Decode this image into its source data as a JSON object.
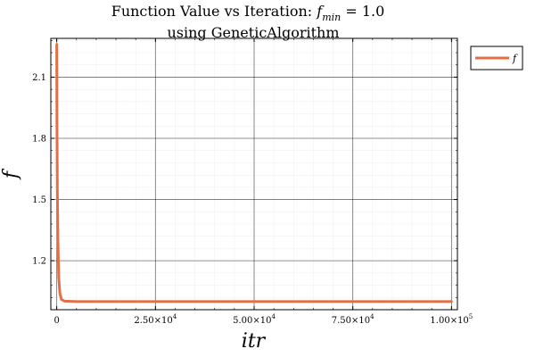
{
  "chart_data": {
    "type": "line",
    "title": {
      "line1_prefix": "Function Value vs Iteration: ",
      "line1_symbol": "f",
      "line1_subscript": "min",
      "line1_suffix": " =  1.0",
      "line2": "using GeneticAlgorithm"
    },
    "xlabel": "itr",
    "ylabel": "f",
    "xlim": [
      -1500,
      101500
    ],
    "ylim": [
      0.96,
      2.29
    ],
    "x_ticks": [
      {
        "value": 0,
        "mantissa": "0",
        "exponent": ""
      },
      {
        "value": 25000,
        "mantissa": "2.50×10",
        "exponent": "4"
      },
      {
        "value": 50000,
        "mantissa": "5.00×10",
        "exponent": "4"
      },
      {
        "value": 75000,
        "mantissa": "7.50×10",
        "exponent": "4"
      },
      {
        "value": 100000,
        "mantissa": "1.00×10",
        "exponent": "5"
      }
    ],
    "y_ticks": [
      {
        "value": 1.2,
        "label": "1.2"
      },
      {
        "value": 1.5,
        "label": "1.5"
      },
      {
        "value": 1.8,
        "label": "1.8"
      },
      {
        "value": 2.1,
        "label": "2.1"
      }
    ],
    "grid": true,
    "minor_grid": true,
    "legend": "outside-top-right",
    "series": [
      {
        "name": "f",
        "color": "#e26f46",
        "x": [
          0,
          50,
          150,
          300,
          500,
          800,
          1200,
          2000,
          5000,
          10000,
          25000,
          50000,
          75000,
          100000
        ],
        "y": [
          2.26,
          1.9,
          1.55,
          1.3,
          1.12,
          1.04,
          1.01,
          1.002,
          1.0,
          1.0,
          1.0,
          1.0,
          1.0,
          1.0
        ]
      }
    ]
  }
}
